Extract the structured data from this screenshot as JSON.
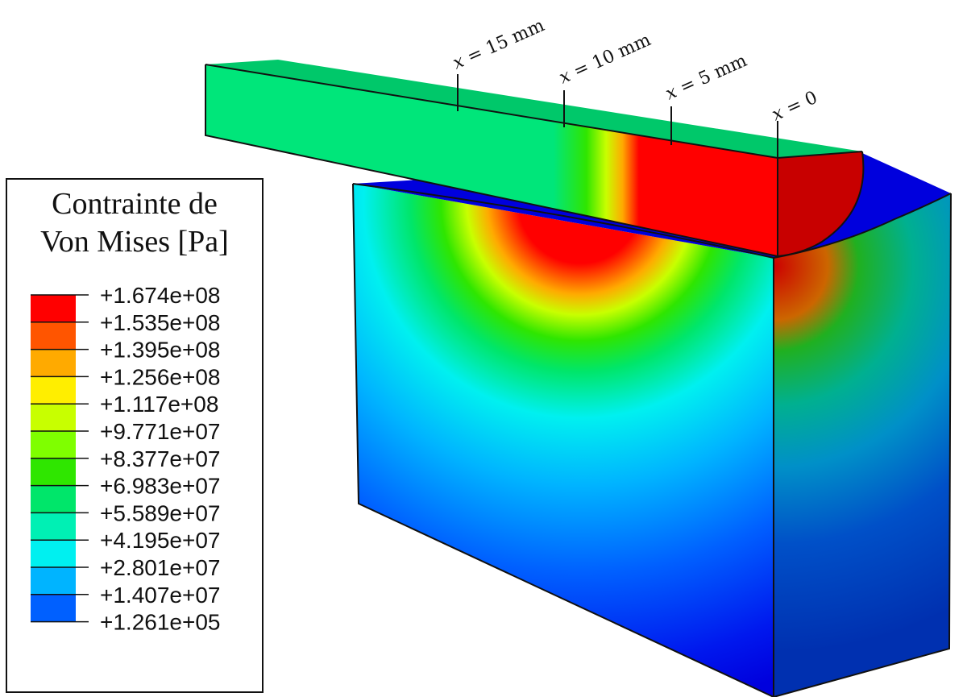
{
  "legend": {
    "title_line1": "Contrainte de",
    "title_line2": "Von Mises [Pa]",
    "levels": [
      {
        "label": "+1.674e+08",
        "color": "#ff0000"
      },
      {
        "label": "+1.535e+08",
        "color": "#ff5500"
      },
      {
        "label": "+1.395e+08",
        "color": "#ffaa00"
      },
      {
        "label": "+1.256e+08",
        "color": "#ffee00"
      },
      {
        "label": "+1.117e+08",
        "color": "#c8ff00"
      },
      {
        "label": "+9.771e+07",
        "color": "#7fff00"
      },
      {
        "label": "+8.377e+07",
        "color": "#2fe600"
      },
      {
        "label": "+6.983e+07",
        "color": "#00e66a"
      },
      {
        "label": "+5.589e+07",
        "color": "#00f0b4"
      },
      {
        "label": "+4.195e+07",
        "color": "#00f0f0"
      },
      {
        "label": "+2.801e+07",
        "color": "#00b4ff"
      },
      {
        "label": "+1.407e+07",
        "color": "#0060ff"
      },
      {
        "label": "+1.261e+05",
        "color": "#0000ee"
      }
    ]
  },
  "markers": [
    {
      "var": "x",
      "rest": " = 15 mm"
    },
    {
      "var": "x",
      "rest": " = 10 mm"
    },
    {
      "var": "x",
      "rest": " = 5 mm"
    },
    {
      "var": "x",
      "rest": " = 0"
    }
  ]
}
